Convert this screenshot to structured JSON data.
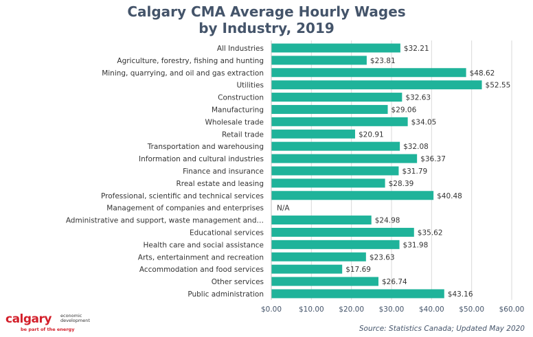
{
  "chart_data": {
    "type": "bar",
    "orientation": "horizontal",
    "title_line1": "Calgary CMA Average Hourly Wages",
    "title_line2": "by Industry, 2019",
    "categories": [
      "All Industries",
      "Agriculture, forestry, fishing and hunting",
      "Mining, quarrying, and oil and gas extraction",
      "Utilities",
      "Construction",
      "Manufacturing",
      "Wholesale trade",
      "Retail trade",
      "Transportation and warehousing",
      "Information and cultural industries",
      "Finance and insurance",
      "Rreal estate and leasing",
      "Professional, scientific and technical services",
      "Management of companies and enterprises",
      "Administrative and support, waste management and…",
      "Educational services",
      "Health care and social assistance",
      "Arts, entertainment and recreation",
      "Accommodation and food services",
      "Other services",
      "Public administration"
    ],
    "values": [
      32.21,
      23.81,
      48.62,
      52.55,
      32.63,
      29.06,
      34.05,
      20.91,
      32.08,
      36.37,
      31.79,
      28.39,
      40.48,
      null,
      24.98,
      35.62,
      31.98,
      23.63,
      17.69,
      26.74,
      43.16
    ],
    "data_labels": [
      "$32.21",
      "$23.81",
      "$48.62",
      "$52.55",
      "$32.63",
      "$29.06",
      "$34.05",
      "$20.91",
      "$32.08",
      "$36.37",
      "$31.79",
      "$28.39",
      "$40.48",
      "N/A",
      "$24.98",
      "$35.62",
      "$31.98",
      "$23.63",
      "$17.69",
      "$26.74",
      "$43.16"
    ],
    "xlim": [
      0,
      60
    ],
    "xticks": [
      0,
      10,
      20,
      30,
      40,
      50,
      60
    ],
    "xtick_labels": [
      "$0.00",
      "$10.00",
      "$20.00",
      "$30.00",
      "$40.00",
      "$50.00",
      "$60.00"
    ],
    "bar_color": "#1fb39a",
    "grid": true,
    "legend": "none"
  },
  "logo": {
    "word": "calgary",
    "side_line1": "economic",
    "side_line2": "development",
    "tagline": "be part of the energy"
  },
  "source": "Source: Statistics Canada; Updated May 2020"
}
